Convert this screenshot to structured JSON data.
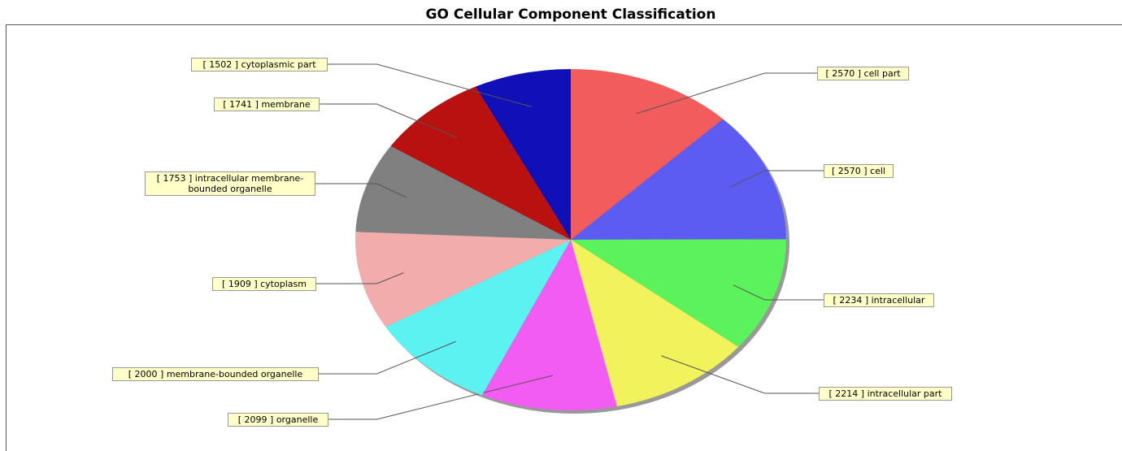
{
  "chart_data": {
    "type": "pie",
    "title": "GO Cellular Component Classification",
    "categories": [
      "cell part",
      "cell",
      "intracellular",
      "intracellular part",
      "organelle",
      "membrane-bounded organelle",
      "cytoplasm",
      "intracellular membrane-bounded organelle",
      "membrane",
      "cytoplasmic part"
    ],
    "values": [
      2570,
      2570,
      2234,
      2214,
      2099,
      2000,
      1909,
      1753,
      1741,
      1502
    ],
    "value_labels": [
      "[ 2570 ]",
      "[ 2570 ]",
      "[ 2234 ]",
      "[ 2214 ]",
      "[ 2099 ]",
      "[ 2000 ]",
      "[ 1909 ]",
      "[ 1753 ]",
      "[ 1741 ]",
      "[ 1502 ]"
    ],
    "colors": [
      "#f25c5c",
      "#5c5cf2",
      "#5cf25c",
      "#f2f25c",
      "#f25cf2",
      "#5cf2f2",
      "#f2acac",
      "#808080",
      "#b91010",
      "#1010b9"
    ]
  }
}
